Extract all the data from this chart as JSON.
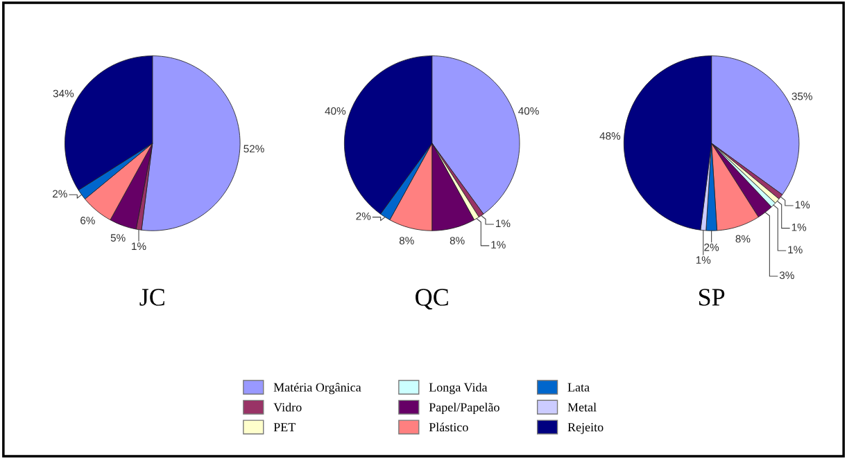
{
  "chart_data": [
    {
      "type": "pie",
      "title": "JC",
      "categories": [
        "Matéria Orgânica",
        "Vidro",
        "PET",
        "Longa Vida",
        "Papel/Papelão",
        "Plástico",
        "Lata",
        "Metal",
        "Rejeito"
      ],
      "values": [
        52,
        1,
        null,
        null,
        5,
        6,
        2,
        null,
        34
      ],
      "value_labels": [
        "52%",
        "1%",
        null,
        null,
        "5%",
        "6%",
        "2%",
        null,
        "34%"
      ],
      "colors": [
        "#9999ff",
        "#993366",
        "#ffffcc",
        "#ccffff",
        "#660066",
        "#ff8080",
        "#0066cc",
        "#ccccff",
        "#000080"
      ],
      "legend": "bottom"
    },
    {
      "type": "pie",
      "title": "QC",
      "categories": [
        null,
        null,
        null,
        null,
        null,
        null,
        null,
        null,
        null
      ],
      "values": [
        40,
        1,
        1,
        null,
        8,
        8,
        2,
        null,
        40
      ],
      "value_labels": [
        "40%",
        "1%",
        "1%",
        null,
        "8%",
        "8%",
        "2%",
        null,
        "40%"
      ],
      "colors": [
        "#9999ff",
        "#993366",
        "#ffffcc",
        "#ccffff",
        "#660066",
        "#ff8080",
        "#0066cc",
        "#ccccff",
        "#000080"
      ]
    },
    {
      "type": "pie",
      "title": "SP",
      "categories": [
        null,
        null,
        null,
        null,
        null,
        null,
        null,
        null,
        null
      ],
      "values": [
        35,
        1,
        1,
        1,
        3,
        8,
        2,
        1,
        48
      ],
      "value_labels": [
        "35%",
        "1%",
        "1%",
        "1%",
        "3%",
        "8%",
        "2%",
        "1%",
        "48%"
      ],
      "colors": [
        "#9999ff",
        "#993366",
        "#ffffcc",
        "#ccffff",
        "#660066",
        "#ff8080",
        "#0066cc",
        "#ccccff",
        "#000080"
      ]
    }
  ]
}
